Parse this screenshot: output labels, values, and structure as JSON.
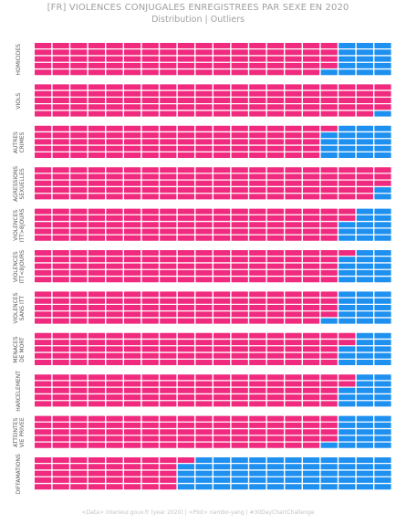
{
  "title": "[FR] VIOLENCES CONJUGALES ENREGISTREES PAR SEXE EN 2020",
  "subtitle": "Distribution | Outliers",
  "caption": "<Data> interieur.gouv.fr (year 2020) | <Plot> nambo-yang | #30DayChartChallenge",
  "colors": {
    "women": "#f02a7e",
    "men": "#1e90f0"
  },
  "chart_data": {
    "type": "waffle",
    "unit": "share of 100 squares (percent)",
    "grid": "5 rows x 20 columns per category",
    "series": [
      {
        "color": "pink"
      },
      {
        "color": "blue"
      }
    ],
    "categories": [
      {
        "label": [
          "HOMICIDES"
        ],
        "women": 84,
        "men": 16
      },
      {
        "label": [
          "VIOLS"
        ],
        "women": 99,
        "men": 1
      },
      {
        "label": [
          "AUTRES",
          "CRIMES"
        ],
        "women": 81,
        "men": 19
      },
      {
        "label": [
          "AGRESSIONS",
          "SEXUELLES"
        ],
        "women": 98,
        "men": 2
      },
      {
        "label": [
          "VIOLENCES",
          "ITT>8JOURS"
        ],
        "women": 87,
        "men": 13
      },
      {
        "label": [
          "VIOLENCES",
          "ITT<8JOURS"
        ],
        "women": 86,
        "men": 14
      },
      {
        "label": [
          "VIOLENCES",
          "SANS ITT"
        ],
        "women": 84,
        "men": 16
      },
      {
        "label": [
          "MENACES",
          "DE MORT"
        ],
        "women": 87,
        "men": 13
      },
      {
        "label": [
          "HARCELEMENT"
        ],
        "women": 87,
        "men": 13
      },
      {
        "label": [
          "ATTEINTES",
          "VIE PRIVEE"
        ],
        "women": 84,
        "men": 16
      },
      {
        "label": [
          "DIFFAMATIONS"
        ],
        "women": 41,
        "men": 59
      }
    ]
  }
}
